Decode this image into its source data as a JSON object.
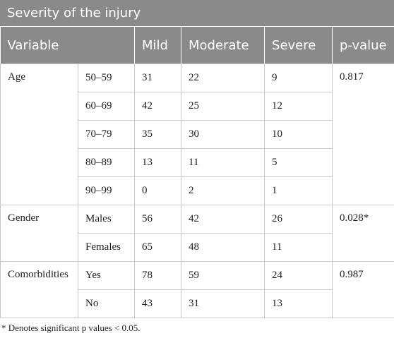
{
  "title": "Severity of the injury",
  "header": [
    "Variable",
    "Mild",
    "Moderate",
    "Severe",
    "p-value"
  ],
  "groups": [
    {
      "name": "Age",
      "p_value": "0.817",
      "rows": [
        {
          "label": "50–59",
          "values": [
            31,
            22,
            9
          ]
        },
        {
          "label": "60–69",
          "values": [
            42,
            25,
            12
          ]
        },
        {
          "label": "70–79",
          "values": [
            35,
            30,
            10
          ]
        },
        {
          "label": "80–89",
          "values": [
            13,
            11,
            5
          ]
        },
        {
          "label": "90–99",
          "values": [
            0,
            2,
            1
          ]
        }
      ]
    },
    {
      "name": "Gender",
      "p_value": "0.028*",
      "rows": [
        {
          "label": "Males",
          "values": [
            56,
            42,
            26
          ]
        },
        {
          "label": "Females",
          "values": [
            65,
            48,
            11
          ]
        }
      ]
    },
    {
      "name": "Comorbidities",
      "p_value": "0.987",
      "rows": [
        {
          "label": "Yes",
          "values": [
            78,
            59,
            24
          ]
        },
        {
          "label": "No",
          "values": [
            43,
            31,
            13
          ]
        }
      ]
    }
  ],
  "footnote": "* Denotes significant p values < 0.05."
}
